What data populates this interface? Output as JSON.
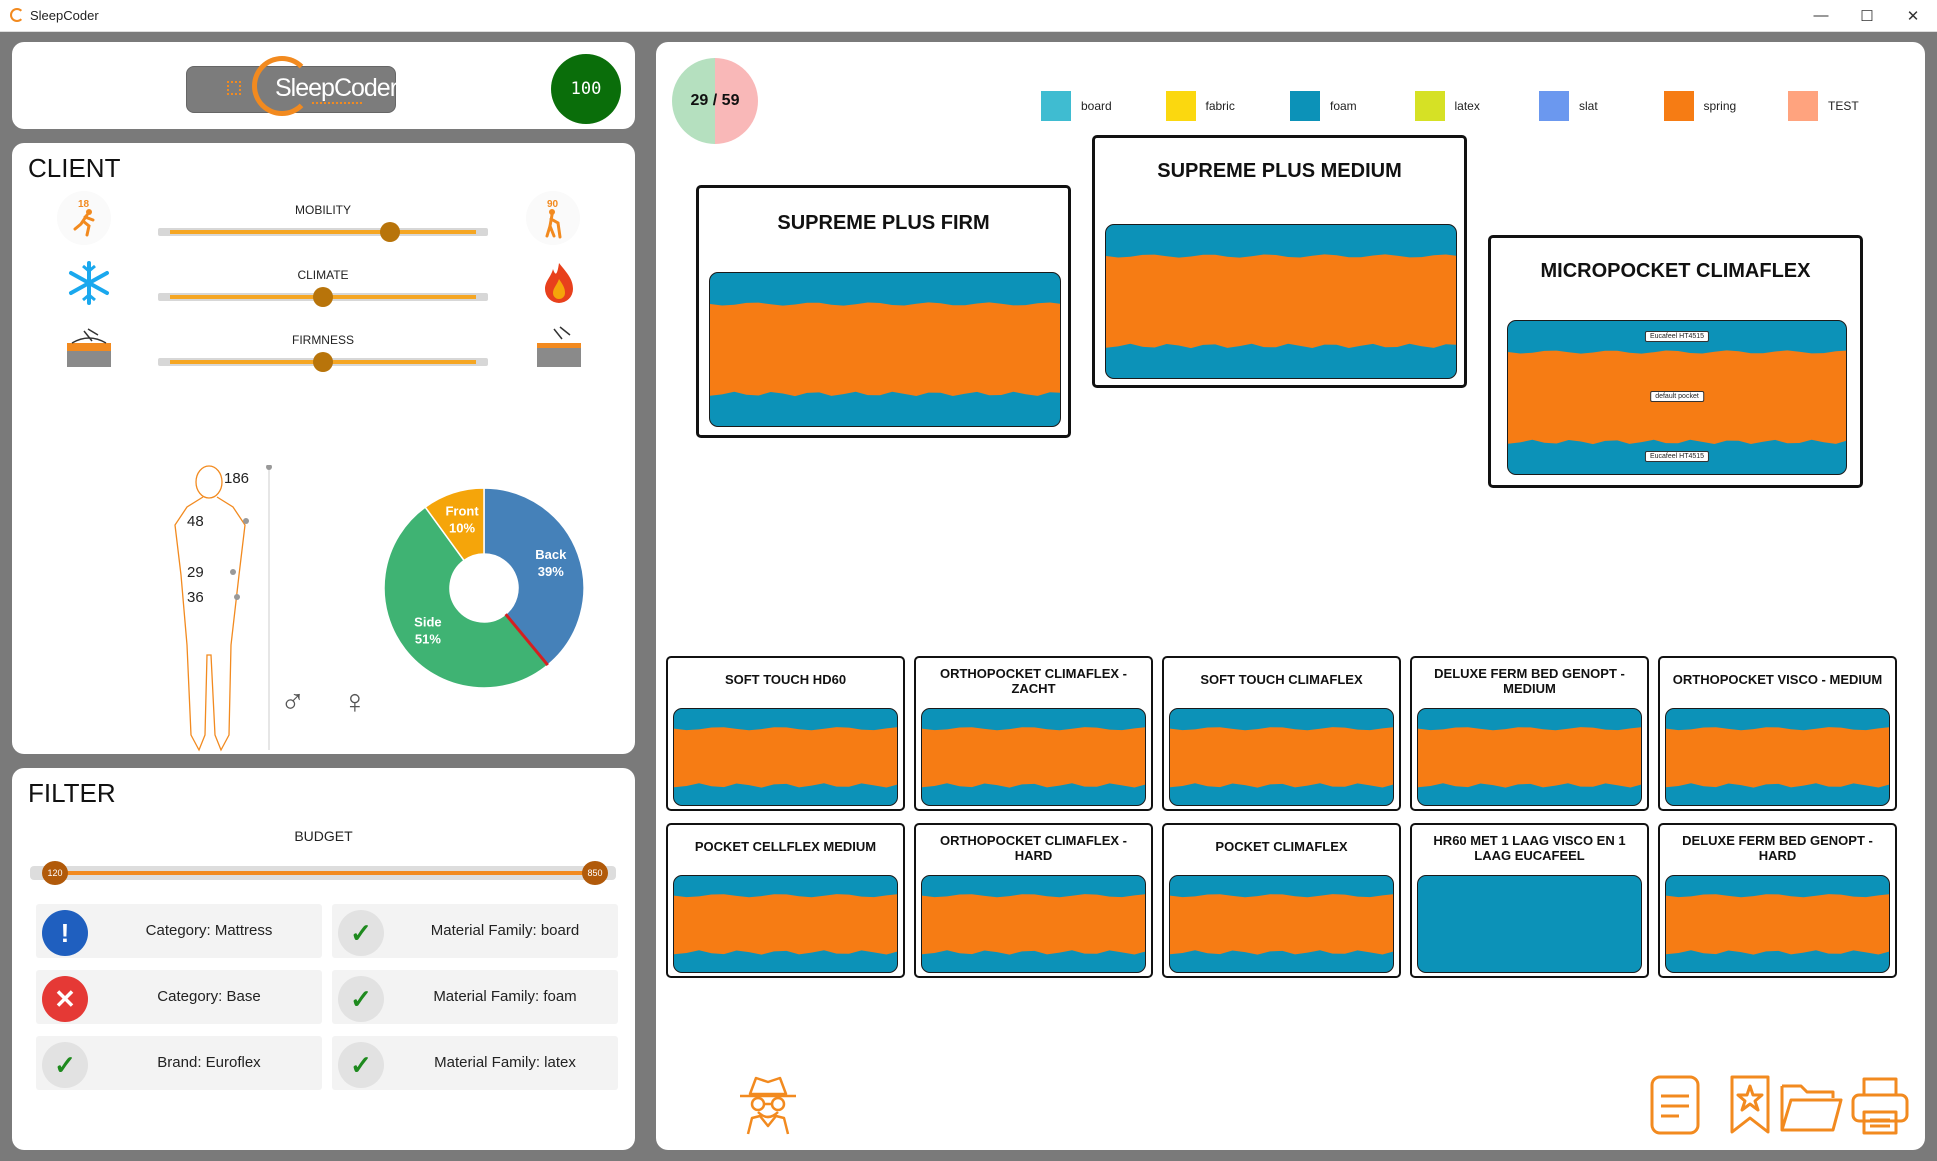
{
  "window": {
    "title": "SleepCoder"
  },
  "header": {
    "logo_text": "SleepCoder",
    "score": "100"
  },
  "client": {
    "title": "CLIENT",
    "age_min": "18",
    "age_max": "90",
    "sliders": [
      {
        "label": "MOBILITY",
        "value": 0.72
      },
      {
        "label": "CLIMATE",
        "value": 0.5
      },
      {
        "label": "FIRMNESS",
        "value": 0.5
      }
    ],
    "body": {
      "height": "186",
      "m1": "48",
      "m2": "29",
      "m3": "36"
    },
    "gender_male": "♂",
    "gender_female": "♀",
    "sleep_positions": [
      {
        "name": "Back",
        "value": 39,
        "label": "Back\n39%",
        "color": "#4581b9"
      },
      {
        "name": "Side",
        "value": 51,
        "label": "Side\n51%",
        "color": "#3fb373"
      },
      {
        "name": "Front",
        "value": 10,
        "label": "Front\n10%",
        "color": "#f5a50a"
      }
    ]
  },
  "filter": {
    "title": "FILTER",
    "budget_label": "BUDGET",
    "budget_min": "120",
    "budget_max": "850",
    "items": [
      {
        "label": "Category: Mattress",
        "status": "info"
      },
      {
        "label": "Material Family: board",
        "status": "ok"
      },
      {
        "label": "Category: Base",
        "status": "error"
      },
      {
        "label": "Material Family: foam",
        "status": "ok"
      },
      {
        "label": "Brand: Euroflex",
        "status": "ok"
      },
      {
        "label": "Material Family: latex",
        "status": "ok"
      }
    ]
  },
  "results": {
    "count": "29 / 59",
    "legend": [
      {
        "name": "board",
        "color": "#3fbcd1"
      },
      {
        "name": "fabric",
        "color": "#fbd80f"
      },
      {
        "name": "foam",
        "color": "#0c92b8"
      },
      {
        "name": "latex",
        "color": "#d6e125"
      },
      {
        "name": "slat",
        "color": "#6b98ef"
      },
      {
        "name": "spring",
        "color": "#f67c14"
      },
      {
        "name": "TEST",
        "color": "#ffa37e"
      }
    ],
    "top": [
      {
        "title": "SUPREME PLUS FIRM"
      },
      {
        "title": "SUPREME PLUS MEDIUM"
      },
      {
        "title": "MICROPOCKET CLIMAFLEX",
        "layers": [
          "Eucafeel HT4515",
          "default pocket",
          "Eucafeel HT4515"
        ]
      }
    ],
    "grid": [
      {
        "title": "SOFT TOUCH HD60"
      },
      {
        "title": "ORTHOPOCKET CLIMAFLEX - ZACHT"
      },
      {
        "title": "SOFT TOUCH CLIMAFLEX"
      },
      {
        "title": "DELUXE FERM BED GENOPT - MEDIUM"
      },
      {
        "title": "ORTHOPOCKET VISCO - MEDIUM"
      },
      {
        "title": "POCKET CELLFLEX MEDIUM"
      },
      {
        "title": "ORTHOPOCKET CLIMAFLEX - HARD"
      },
      {
        "title": "POCKET CLIMAFLEX"
      },
      {
        "title": "HR60 MET 1 LAAG VISCO EN 1 LAAG EUCAFEEL",
        "foam_only": true
      },
      {
        "title": "DELUXE FERM BED GENOPT - HARD"
      }
    ]
  },
  "colors": {
    "accent": "#f28a1f",
    "foam": "#0c92b8",
    "spring": "#f67c14"
  }
}
